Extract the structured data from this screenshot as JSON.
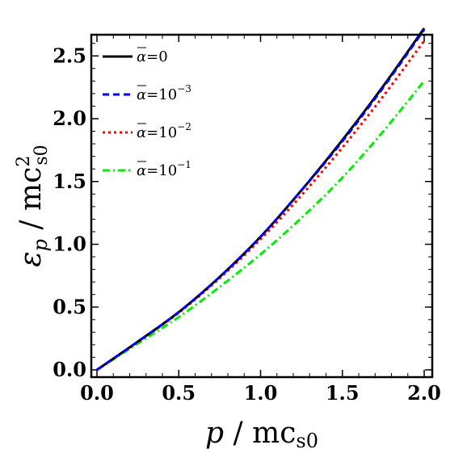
{
  "chart_data": {
    "type": "line",
    "xlabel": {
      "main": "p",
      "sep": " / ",
      "unit": "mc",
      "sub": "s0"
    },
    "ylabel": {
      "main": "ε",
      "sub_main": "p",
      "sep": " / ",
      "unit": "mc",
      "sup": "2",
      "sub": "s0"
    },
    "xlim": [
      0,
      2
    ],
    "ylim": [
      0,
      2.75
    ],
    "xticks": [
      0.0,
      0.5,
      1.0,
      1.5,
      2.0
    ],
    "xtick_labels": [
      "0.0",
      "0.5",
      "1.0",
      "1.5",
      "2.0"
    ],
    "yticks": [
      0.0,
      0.5,
      1.0,
      1.5,
      2.0,
      2.5
    ],
    "ytick_labels": [
      "0.0",
      "0.5",
      "1.0",
      "1.5",
      "2.0",
      "2.5"
    ],
    "legend_placement": "top-left",
    "grid": false,
    "series": [
      {
        "name": "ᾱ=0",
        "label_sym": "α",
        "label_eq": "=0",
        "label_pow": "",
        "color": "#000000",
        "dash": "solid",
        "x": [
          0,
          0.25,
          0.5,
          0.75,
          1.0,
          1.25,
          1.5,
          1.75,
          2.0
        ],
        "y": [
          0,
          0.225,
          0.46,
          0.74,
          1.06,
          1.43,
          1.83,
          2.26,
          2.72
        ]
      },
      {
        "name": "ᾱ=10^-3",
        "label_sym": "α",
        "label_eq": "=10",
        "label_pow": "−3",
        "color": "#0000ff",
        "dash": "dashed",
        "x": [
          0,
          0.25,
          0.5,
          0.75,
          1.0,
          1.25,
          1.5,
          1.75,
          2.0
        ],
        "y": [
          0,
          0.225,
          0.46,
          0.74,
          1.06,
          1.43,
          1.82,
          2.25,
          2.71
        ]
      },
      {
        "name": "ᾱ=10^-2",
        "label_sym": "α",
        "label_eq": "=10",
        "label_pow": "−2",
        "color": "#ff0000",
        "dash": "dotted",
        "x": [
          0,
          0.25,
          0.5,
          0.75,
          1.0,
          1.25,
          1.5,
          1.75,
          2.0
        ],
        "y": [
          0,
          0.222,
          0.455,
          0.73,
          1.04,
          1.39,
          1.77,
          2.18,
          2.62
        ]
      },
      {
        "name": "ᾱ=10^-1",
        "label_sym": "α",
        "label_eq": "=10",
        "label_pow": "−1",
        "color": "#00ee00",
        "dash": "dashdot",
        "x": [
          0,
          0.25,
          0.5,
          0.75,
          1.0,
          1.25,
          1.5,
          1.75,
          2.0
        ],
        "y": [
          0,
          0.21,
          0.42,
          0.66,
          0.92,
          1.21,
          1.53,
          1.9,
          2.3
        ]
      }
    ]
  }
}
